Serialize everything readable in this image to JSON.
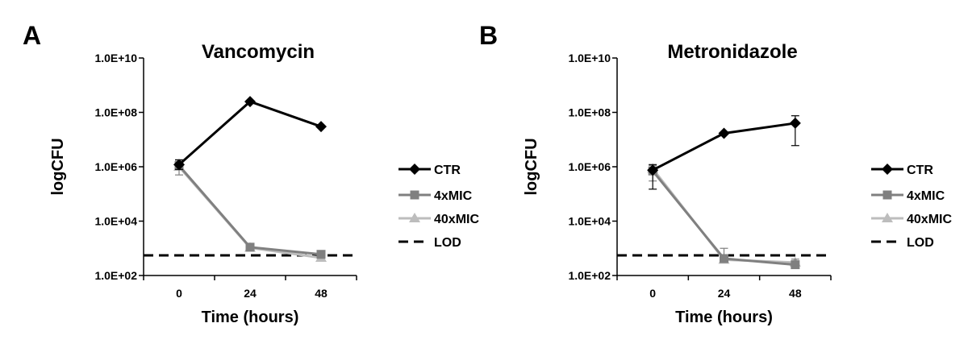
{
  "colors": {
    "CTR": "#000000",
    "4xMIC": "#808080",
    "40xMIC": "#bdbdbd",
    "LOD": "#000000"
  },
  "chart_data": [
    {
      "panel": "A",
      "type": "line",
      "title": "Vancomycin",
      "xlabel": "Time (hours)",
      "ylabel": "logCFU",
      "y_scale": "log",
      "ylim": [
        100,
        10000000000
      ],
      "y_ticks": [
        "1.0E+02",
        "1.0E+04",
        "1.0E+06",
        "1.0E+08",
        "1.0E+10"
      ],
      "x": [
        0,
        24,
        48
      ],
      "x_ticks": [
        "0",
        "24",
        "48"
      ],
      "grid": false,
      "legend": "right",
      "series": [
        {
          "name": "CTR",
          "marker": "diamond",
          "values": [
            1200000,
            250000000,
            30000000
          ],
          "error": [
            [
              800000,
              1800000
            ],
            null,
            null
          ]
        },
        {
          "name": "4xMIC",
          "marker": "square",
          "values": [
            1100000,
            1100,
            600
          ],
          "error": [
            [
              500000,
              1600000
            ],
            null,
            null
          ]
        },
        {
          "name": "40xMIC",
          "marker": "triangle",
          "values": [
            1000000,
            1050,
            450
          ],
          "error": [
            null,
            null,
            null
          ]
        },
        {
          "name": "LOD",
          "style": "dashed",
          "values": [
            550,
            550,
            550
          ]
        }
      ]
    },
    {
      "panel": "B",
      "type": "line",
      "title": "Metronidazole",
      "xlabel": "Time (hours)",
      "ylabel": "logCFU",
      "y_scale": "log",
      "ylim": [
        100,
        10000000000
      ],
      "y_ticks": [
        "1.0E+02",
        "1.0E+04",
        "1.0E+06",
        "1.0E+08",
        "1.0E+10"
      ],
      "x": [
        0,
        24,
        48
      ],
      "x_ticks": [
        "0",
        "24",
        "48"
      ],
      "grid": false,
      "legend": "right",
      "series": [
        {
          "name": "CTR",
          "marker": "diamond",
          "values": [
            750000,
            17000000,
            40000000
          ],
          "error": [
            [
              150000,
              1200000
            ],
            null,
            [
              6000000,
              75000000
            ]
          ]
        },
        {
          "name": "4xMIC",
          "marker": "square",
          "values": [
            700000,
            420,
            250
          ],
          "error": [
            [
              300000,
              1100000
            ],
            [
              300,
              1000
            ],
            [
              180,
              400
            ]
          ]
        },
        {
          "name": "40xMIC",
          "marker": "triangle",
          "values": [
            850000,
            380,
            300
          ],
          "error": [
            null,
            null,
            null
          ]
        },
        {
          "name": "LOD",
          "style": "dashed",
          "values": [
            550,
            550,
            550
          ]
        }
      ]
    }
  ]
}
